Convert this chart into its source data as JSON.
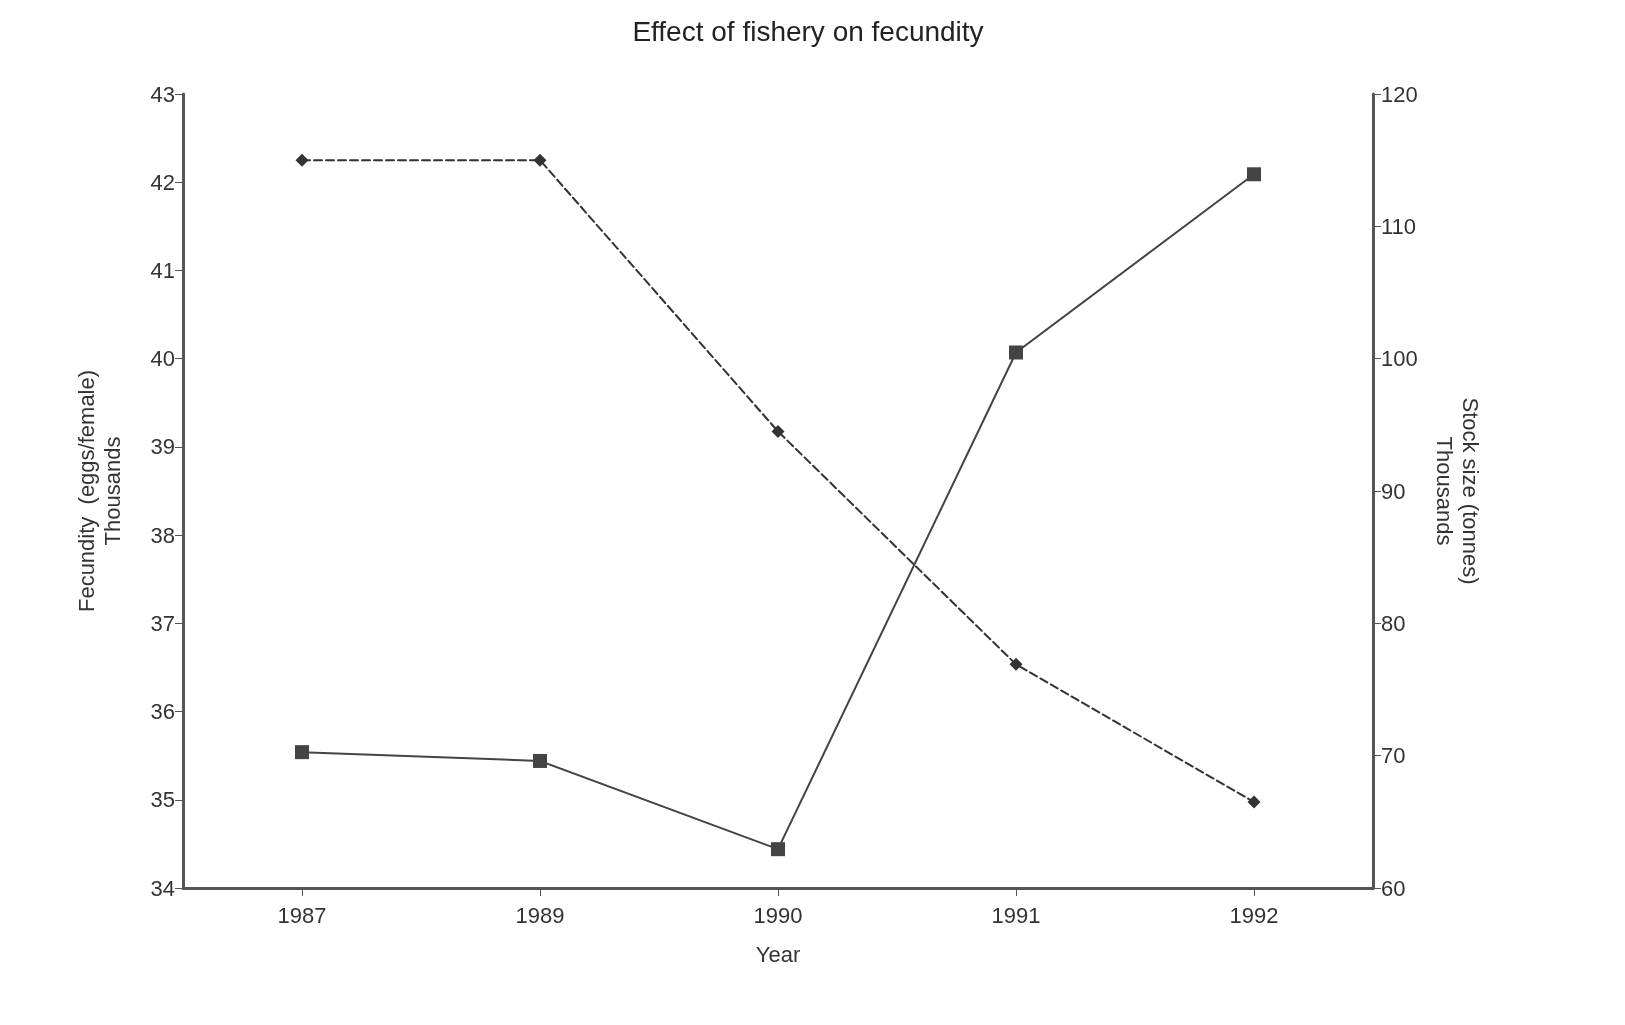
{
  "chart_data": {
    "type": "line",
    "title": "Effect of fishery on fecundity",
    "xlabel": "Year",
    "ylabel": "Fecundity  (eggs/female)\nThousands",
    "y2label": "Stock size (tonnes)\nThousands",
    "categories": [
      "1987",
      "1989",
      "1990",
      "1991",
      "1992"
    ],
    "series": [
      {
        "color": "#444444",
        "values": [
          35.54,
          35.44,
          34.44,
          40.07,
          42.09
        ],
        "marker": "square",
        "line_style": "solid"
      },
      {
        "color": "#333333",
        "values": [
          115,
          115,
          94.5,
          76.9,
          66.5
        ],
        "axis": "y2",
        "marker": "diamond",
        "line_style": "dashed"
      }
    ],
    "ylim": [
      34,
      43
    ],
    "yticks": [
      34,
      35,
      36,
      37,
      38,
      39,
      40,
      41,
      42,
      43
    ],
    "y2lim": [
      60,
      120
    ],
    "y2ticks": [
      60,
      70,
      80,
      90,
      100,
      110,
      120
    ],
    "grid": false
  }
}
